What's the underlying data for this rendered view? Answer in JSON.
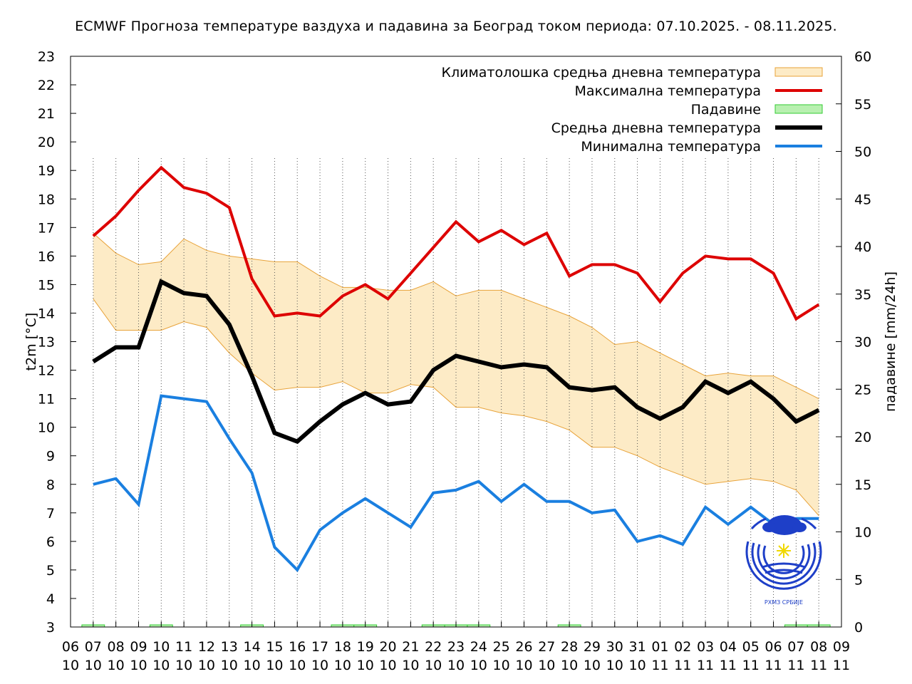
{
  "chart_data": {
    "type": "line",
    "title": "ECMWF Прогноза температуре ваздуха и падавина за Београд током периода: 07.10.2025. - 08.11.2025.",
    "ylabel": "t2m [°C]",
    "y2label": "падавине [mm/24h]",
    "ylim": [
      3,
      23
    ],
    "y2lim": [
      0,
      60
    ],
    "y_ticks": [
      3,
      4,
      5,
      6,
      7,
      8,
      9,
      10,
      11,
      12,
      13,
      14,
      15,
      16,
      17,
      18,
      19,
      20,
      21,
      22,
      23
    ],
    "y2_ticks": [
      0,
      5,
      10,
      15,
      20,
      25,
      30,
      35,
      40,
      45,
      50,
      55,
      60
    ],
    "x_ticks": [
      {
        "day": "06",
        "month": "10"
      },
      {
        "day": "07",
        "month": "10"
      },
      {
        "day": "08",
        "month": "10"
      },
      {
        "day": "09",
        "month": "10"
      },
      {
        "day": "10",
        "month": "10"
      },
      {
        "day": "11",
        "month": "10"
      },
      {
        "day": "12",
        "month": "10"
      },
      {
        "day": "13",
        "month": "10"
      },
      {
        "day": "14",
        "month": "10"
      },
      {
        "day": "15",
        "month": "10"
      },
      {
        "day": "16",
        "month": "10"
      },
      {
        "day": "17",
        "month": "10"
      },
      {
        "day": "18",
        "month": "10"
      },
      {
        "day": "19",
        "month": "10"
      },
      {
        "day": "20",
        "month": "10"
      },
      {
        "day": "21",
        "month": "10"
      },
      {
        "day": "22",
        "month": "10"
      },
      {
        "day": "23",
        "month": "10"
      },
      {
        "day": "24",
        "month": "10"
      },
      {
        "day": "25",
        "month": "10"
      },
      {
        "day": "26",
        "month": "10"
      },
      {
        "day": "27",
        "month": "10"
      },
      {
        "day": "28",
        "month": "10"
      },
      {
        "day": "29",
        "month": "10"
      },
      {
        "day": "30",
        "month": "10"
      },
      {
        "day": "31",
        "month": "10"
      },
      {
        "day": "01",
        "month": "11"
      },
      {
        "day": "02",
        "month": "11"
      },
      {
        "day": "03",
        "month": "11"
      },
      {
        "day": "04",
        "month": "11"
      },
      {
        "day": "05",
        "month": "11"
      },
      {
        "day": "06",
        "month": "11"
      },
      {
        "day": "07",
        "month": "11"
      },
      {
        "day": "08",
        "month": "11"
      },
      {
        "day": "09",
        "month": "11"
      }
    ],
    "x": [
      "07.10",
      "08.10",
      "09.10",
      "10.10",
      "11.10",
      "12.10",
      "13.10",
      "14.10",
      "15.10",
      "16.10",
      "17.10",
      "18.10",
      "19.10",
      "20.10",
      "21.10",
      "22.10",
      "23.10",
      "24.10",
      "25.10",
      "26.10",
      "27.10",
      "28.10",
      "29.10",
      "30.10",
      "31.10",
      "01.11",
      "02.11",
      "03.11",
      "04.11",
      "05.11",
      "06.11",
      "07.11",
      "08.11"
    ],
    "band": {
      "name": "Климатолошка средња дневна температура",
      "color": "#e8a33a",
      "fill": "#fdebc6",
      "upper": [
        16.8,
        16.1,
        15.7,
        15.8,
        16.6,
        16.2,
        16.0,
        15.9,
        15.8,
        15.8,
        15.3,
        14.9,
        14.9,
        14.8,
        14.8,
        15.1,
        14.6,
        14.8,
        14.8,
        14.5,
        14.2,
        13.9,
        13.5,
        12.9,
        13.0,
        12.6,
        12.2,
        11.8,
        11.9,
        11.8,
        11.8,
        11.4,
        11.0
      ],
      "lower": [
        14.5,
        13.4,
        13.4,
        13.4,
        13.7,
        13.5,
        12.6,
        11.9,
        11.3,
        11.4,
        11.4,
        11.6,
        11.2,
        11.2,
        11.5,
        11.4,
        10.7,
        10.7,
        10.5,
        10.4,
        10.2,
        9.9,
        9.3,
        9.3,
        9.0,
        8.6,
        8.3,
        8.0,
        8.1,
        8.2,
        8.1,
        7.8,
        6.9
      ]
    },
    "series": [
      {
        "name": "Максимална температура",
        "color": "#dd0000",
        "width": 4,
        "values": [
          16.7,
          17.4,
          18.3,
          19.1,
          18.4,
          18.2,
          17.7,
          15.2,
          13.9,
          14.0,
          13.9,
          14.6,
          15.0,
          14.5,
          15.4,
          16.3,
          17.2,
          16.5,
          16.9,
          16.4,
          16.8,
          15.3,
          15.7,
          15.7,
          15.4,
          14.4,
          15.4,
          16.0,
          15.9,
          15.9,
          15.4,
          13.8,
          14.3
        ]
      },
      {
        "name": "Средња дневна температура",
        "color": "#000000",
        "width": 6,
        "values": [
          12.3,
          12.8,
          12.8,
          15.1,
          14.7,
          14.6,
          13.6,
          11.8,
          9.8,
          9.5,
          10.2,
          10.8,
          11.2,
          10.8,
          10.9,
          12.0,
          12.5,
          12.3,
          12.1,
          12.2,
          12.1,
          11.4,
          11.3,
          11.4,
          10.7,
          10.3,
          10.7,
          11.6,
          11.2,
          11.6,
          11.0,
          10.2,
          10.6
        ]
      },
      {
        "name": "Минимална температура",
        "color": "#1a7fe0",
        "width": 4,
        "values": [
          8.0,
          8.2,
          7.3,
          11.1,
          11.0,
          10.9,
          9.6,
          8.4,
          5.8,
          5.0,
          6.4,
          7.0,
          7.5,
          7.0,
          6.5,
          7.7,
          7.8,
          8.1,
          7.4,
          8.0,
          7.4,
          7.4,
          7.0,
          7.1,
          6.0,
          6.2,
          5.9,
          7.2,
          6.6,
          7.2,
          6.6,
          6.8,
          6.8
        ]
      }
    ],
    "precipitation": {
      "name": "Падавине",
      "color": "#33cc33",
      "fill": "#b8f0b0",
      "values": [
        0.1,
        0,
        0,
        0.1,
        0,
        0,
        0,
        0.1,
        0,
        0,
        0,
        0.1,
        0.1,
        0,
        0,
        0.1,
        0.1,
        0.1,
        0,
        0,
        0,
        0.1,
        0,
        0,
        0,
        0,
        0,
        0,
        0,
        0,
        0,
        0.1,
        0.1
      ]
    },
    "legend_position": "top-right",
    "grid": "vertical dotted"
  }
}
